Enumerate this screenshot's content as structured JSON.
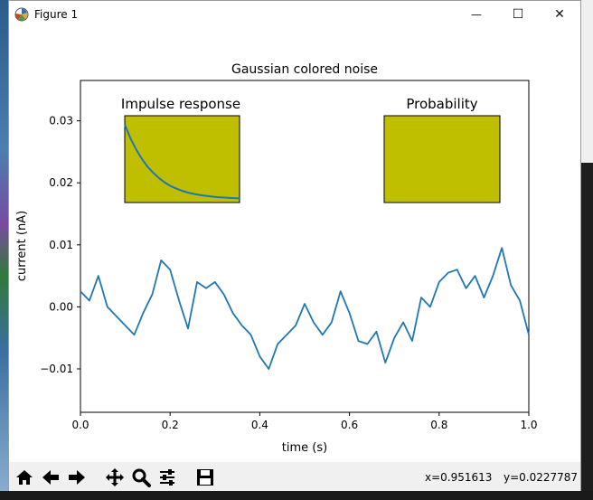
{
  "window": {
    "title": "Figure 1",
    "controls": {
      "minimize": "—",
      "maximize": "☐",
      "close": "✕"
    }
  },
  "toolbar": {
    "tools": [
      "home-icon",
      "back-icon",
      "forward-icon",
      "pan-icon",
      "zoom-icon",
      "configure-subplots-icon",
      "save-icon"
    ],
    "coord_x": "x=0.951613",
    "coord_y": "y=0.0227787"
  },
  "colors": {
    "line": "#1f77b4",
    "inset_face": "#bfbf00",
    "window_bg": "#ffffff",
    "toolbar_bg": "#f0f0f0"
  },
  "chart_data": {
    "type": "line",
    "title": "Gaussian colored noise",
    "xlabel": "time (s)",
    "ylabel": "current (nA)",
    "xlim": [
      0.0,
      1.0
    ],
    "ylim": [
      -0.017,
      0.0365
    ],
    "xticks": [
      0.0,
      0.2,
      0.4,
      0.6,
      0.8,
      1.0
    ],
    "xtick_labels": [
      "0.0",
      "0.2",
      "0.4",
      "0.6",
      "0.8",
      "1.0"
    ],
    "yticks": [
      -0.01,
      0.0,
      0.01,
      0.02,
      0.03
    ],
    "ytick_labels": [
      "−0.01",
      "0.00",
      "0.01",
      "0.02",
      "0.03"
    ],
    "grid": false,
    "series": [
      {
        "x": [
          0.0,
          0.02,
          0.04,
          0.06,
          0.08,
          0.1,
          0.12,
          0.14,
          0.16,
          0.18,
          0.2,
          0.22,
          0.24,
          0.26,
          0.28,
          0.3,
          0.32,
          0.34,
          0.36,
          0.38,
          0.4,
          0.42,
          0.44,
          0.46,
          0.48,
          0.5,
          0.52,
          0.54,
          0.56,
          0.58,
          0.6,
          0.62,
          0.64,
          0.66,
          0.68,
          0.7,
          0.72,
          0.74,
          0.76,
          0.78,
          0.8,
          0.82,
          0.84,
          0.86,
          0.88,
          0.9,
          0.92,
          0.94,
          0.96,
          0.98,
          1.0
        ],
        "y": [
          0.0025,
          0.001,
          0.005,
          0.0,
          -0.0015,
          -0.003,
          -0.0045,
          -0.001,
          0.002,
          0.0075,
          0.006,
          0.001,
          -0.0035,
          0.004,
          0.003,
          0.004,
          0.002,
          -0.001,
          -0.003,
          -0.0045,
          -0.008,
          -0.01,
          -0.006,
          -0.0045,
          -0.003,
          0.0005,
          -0.0025,
          -0.0045,
          -0.0025,
          0.0025,
          -0.001,
          -0.0055,
          -0.006,
          -0.004,
          -0.009,
          -0.005,
          -0.0025,
          -0.0055,
          0.0015,
          0.0,
          0.004,
          0.0055,
          0.006,
          0.003,
          0.005,
          0.0015,
          0.005,
          0.0095,
          0.0035,
          0.001,
          -0.0045
        ]
      }
    ],
    "insets": [
      {
        "title": "Impulse response",
        "type": "line",
        "xlim": [
          0.0,
          0.2
        ],
        "ylim": [
          0.0,
          10.0
        ],
        "x": [
          0.0,
          0.01,
          0.02,
          0.03,
          0.04,
          0.05,
          0.06,
          0.07,
          0.08,
          0.09,
          0.1,
          0.11,
          0.12,
          0.13,
          0.14,
          0.15,
          0.16,
          0.17,
          0.18,
          0.19,
          0.2
        ],
        "y": [
          9.0,
          7.4,
          6.1,
          5.0,
          4.1,
          3.4,
          2.8,
          2.3,
          1.9,
          1.6,
          1.35,
          1.15,
          1.0,
          0.88,
          0.78,
          0.7,
          0.63,
          0.58,
          0.54,
          0.51,
          0.48
        ]
      },
      {
        "title": "Probability",
        "type": "line",
        "x": [],
        "y": []
      }
    ]
  }
}
